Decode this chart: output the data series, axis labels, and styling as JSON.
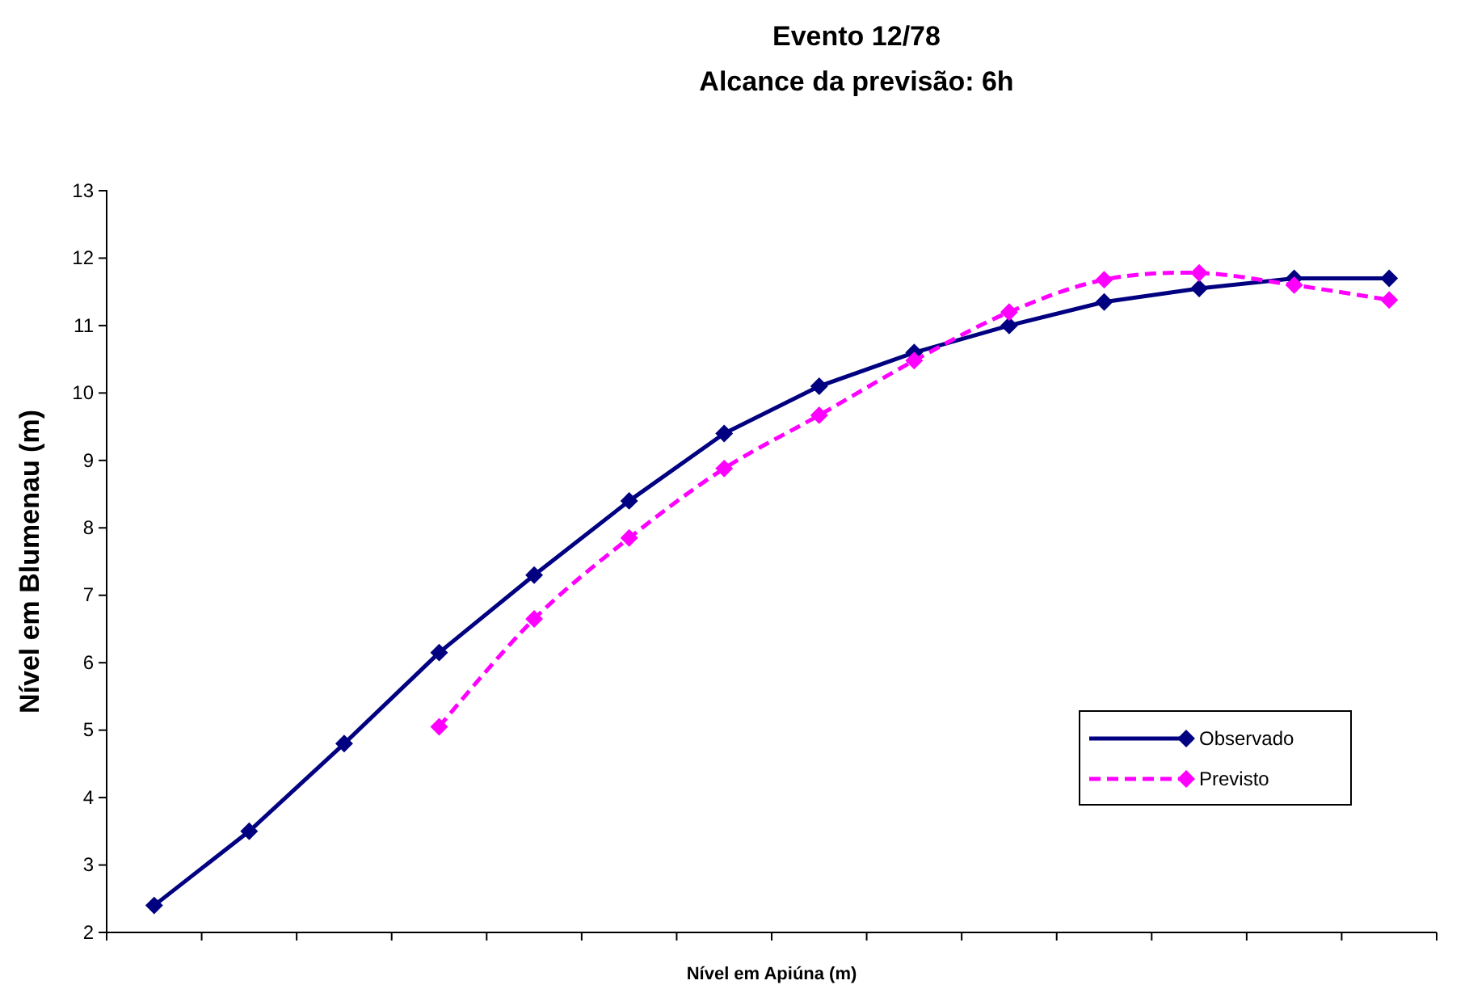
{
  "chart_data": {
    "type": "line",
    "title": "Evento 12/78",
    "subtitle": "Alcance da previsão: 6h",
    "xlabel": "Nível em Apiúna (m)",
    "ylabel": "Nível em Blumenau (m)",
    "categories": [
      null,
      null,
      null,
      null,
      null,
      null,
      null,
      null,
      null,
      null,
      null,
      null,
      null,
      null
    ],
    "ylim": [
      2,
      13
    ],
    "yticks": [
      2,
      3,
      4,
      5,
      6,
      7,
      8,
      9,
      10,
      11,
      12,
      13
    ],
    "grid": false,
    "legend": "right",
    "marker": "diamond",
    "series": [
      {
        "name": "Observado",
        "color": "#000080",
        "line_style": "solid",
        "values": [
          2.4,
          3.5,
          4.8,
          6.15,
          7.3,
          8.4,
          9.4,
          10.1,
          10.6,
          11.0,
          11.35,
          11.55,
          11.7,
          11.7
        ]
      },
      {
        "name": "Previsto",
        "color": "#ff00ff",
        "line_style": "dashed",
        "values": [
          null,
          null,
          null,
          5.05,
          6.65,
          7.85,
          8.88,
          9.67,
          10.48,
          11.2,
          11.68,
          11.78,
          11.6,
          11.38
        ]
      }
    ]
  }
}
